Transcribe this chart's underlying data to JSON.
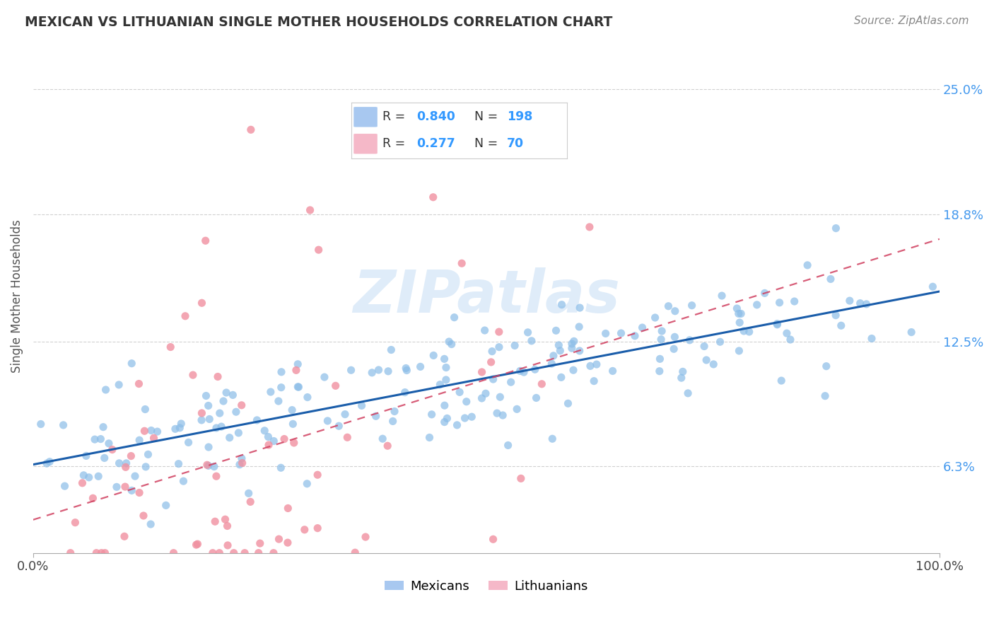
{
  "title": "MEXICAN VS LITHUANIAN SINGLE MOTHER HOUSEHOLDS CORRELATION CHART",
  "source": "Source: ZipAtlas.com",
  "ylabel": "Single Mother Households",
  "yticks": [
    0.063,
    0.125,
    0.188,
    0.25
  ],
  "ytick_labels": [
    "6.3%",
    "12.5%",
    "18.8%",
    "25.0%"
  ],
  "xlim": [
    0,
    1.0
  ],
  "ylim": [
    0.02,
    0.275
  ],
  "mexican_color": "#8bbde8",
  "lithuanian_color": "#f090a0",
  "trend_mexican_color": "#1a5daa",
  "trend_lithuanian_color": "#d04060",
  "watermark_text": "ZIPatlas",
  "R_mexican": 0.84,
  "N_mexican": 198,
  "R_lithuanian": 0.277,
  "N_lithuanian": 70,
  "background_color": "#ffffff",
  "grid_color": "#cccccc",
  "legend_box_color": "#a8c8f0",
  "legend_box_color2": "#f5b8c8"
}
